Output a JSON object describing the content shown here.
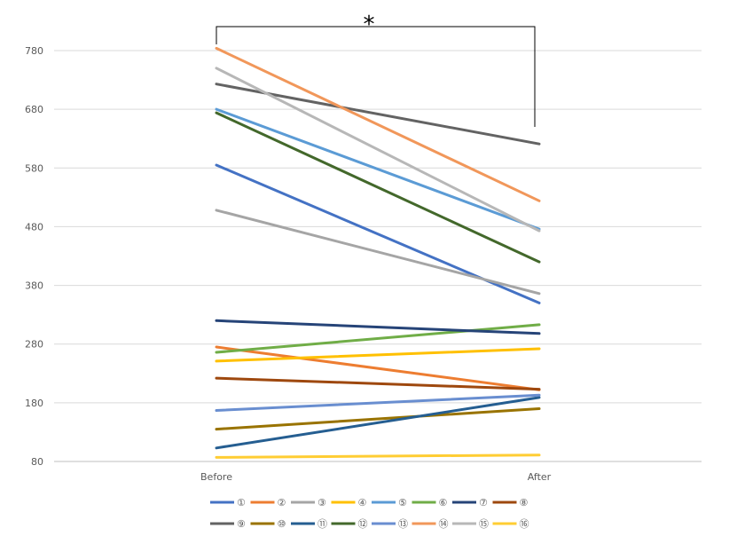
{
  "chart_data": {
    "type": "line",
    "categories": [
      "Before",
      "After"
    ],
    "y_ticks": [
      "80",
      "180",
      "280",
      "380",
      "480",
      "580",
      "680",
      "780"
    ],
    "ylim": [
      80,
      780
    ],
    "grid": true,
    "legend_position": "bottom",
    "annotation": "*",
    "series": [
      {
        "name": "①",
        "color": "#4472C4",
        "values": [
          585,
          350
        ]
      },
      {
        "name": "②",
        "color": "#ED7D31",
        "values": [
          275,
          202
        ]
      },
      {
        "name": "③",
        "color": "#A5A5A5",
        "values": [
          508,
          366
        ]
      },
      {
        "name": "④",
        "color": "#FFC000",
        "values": [
          251,
          272
        ]
      },
      {
        "name": "⑤",
        "color": "#5B9BD5",
        "values": [
          680,
          476
        ]
      },
      {
        "name": "⑥",
        "color": "#70AD47",
        "values": [
          266,
          313
        ]
      },
      {
        "name": "⑦",
        "color": "#264478",
        "values": [
          320,
          298
        ]
      },
      {
        "name": "⑧",
        "color": "#9E480E",
        "values": [
          222,
          203
        ]
      },
      {
        "name": "⑨",
        "color": "#636363",
        "values": [
          723,
          621
        ]
      },
      {
        "name": "⑩",
        "color": "#997300",
        "values": [
          135,
          170
        ]
      },
      {
        "name": "⑪",
        "color": "#255E91",
        "values": [
          103,
          189
        ]
      },
      {
        "name": "⑫",
        "color": "#43682B",
        "values": [
          674,
          420
        ]
      },
      {
        "name": "⑬",
        "color": "#698ED0",
        "values": [
          167,
          193
        ]
      },
      {
        "name": "⑭",
        "color": "#F1975A",
        "values": [
          784,
          524
        ]
      },
      {
        "name": "⑮",
        "color": "#B7B7B7",
        "values": [
          750,
          473
        ]
      },
      {
        "name": "⑯",
        "color": "#FFCD33",
        "values": [
          87,
          91
        ]
      }
    ]
  }
}
